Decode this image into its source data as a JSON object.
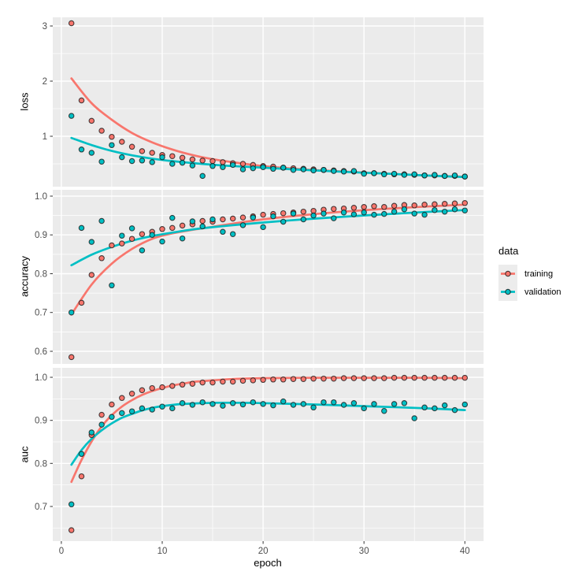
{
  "figure": {
    "background": "#FFFFFF",
    "panel_background": "#EBEBEB",
    "grid_color": "#FFFFFF",
    "tick_mark_color": "#333333",
    "tick_label_color": "#4D4D4D",
    "axis_title_color": "#000000",
    "point_outline_color": "#1A1A1A"
  },
  "legend": {
    "title": "data",
    "entries": [
      {
        "label": "training",
        "color": "#F8766D"
      },
      {
        "label": "validation",
        "color": "#00BFC4"
      }
    ]
  },
  "x_axis": {
    "label": "epoch",
    "ticks": [
      0,
      10,
      20,
      30,
      40
    ],
    "tick_labels": [
      "0",
      "10",
      "20",
      "30",
      "40"
    ],
    "minor_ticks": [
      5,
      15,
      25,
      35
    ],
    "xlim": [
      -0.85,
      41.85
    ]
  },
  "chart_data": [
    {
      "type": "scatter",
      "ylabel": "loss",
      "ylim": [
        0.086,
        3.157
      ],
      "yticks": [
        1,
        2,
        3
      ],
      "ytick_labels": [
        "1",
        "2",
        "3"
      ],
      "yticks_minor": [
        0.5,
        1.5,
        2.5
      ],
      "x": [
        1,
        2,
        3,
        4,
        5,
        6,
        7,
        8,
        9,
        10,
        11,
        12,
        13,
        14,
        15,
        16,
        17,
        18,
        19,
        20,
        21,
        22,
        23,
        24,
        25,
        26,
        27,
        28,
        29,
        30,
        31,
        32,
        33,
        34,
        35,
        36,
        37,
        38,
        39,
        40
      ],
      "series": [
        {
          "name": "training",
          "color": "#F8766D",
          "values": [
            3.05,
            1.65,
            1.28,
            1.1,
            0.99,
            0.9,
            0.81,
            0.73,
            0.7,
            0.66,
            0.64,
            0.61,
            0.58,
            0.56,
            0.55,
            0.53,
            0.51,
            0.5,
            0.48,
            0.46,
            0.45,
            0.43,
            0.42,
            0.41,
            0.4,
            0.39,
            0.38,
            0.37,
            0.36,
            0.33,
            0.33,
            0.32,
            0.31,
            0.31,
            0.3,
            0.29,
            0.29,
            0.28,
            0.28,
            0.27
          ],
          "smooth": [
            [
              1,
              2.05
            ],
            [
              3,
              1.6
            ],
            [
              5,
              1.3
            ],
            [
              7,
              1.06
            ],
            [
              9,
              0.89
            ],
            [
              11,
              0.76
            ],
            [
              13,
              0.66
            ],
            [
              15,
              0.585
            ],
            [
              17,
              0.53
            ],
            [
              20,
              0.46
            ],
            [
              24,
              0.4
            ],
            [
              28,
              0.36
            ],
            [
              32,
              0.325
            ],
            [
              36,
              0.29
            ],
            [
              40,
              0.265
            ]
          ]
        },
        {
          "name": "validation",
          "color": "#00BFC4",
          "values": [
            1.37,
            0.76,
            0.7,
            0.54,
            0.84,
            0.62,
            0.55,
            0.56,
            0.53,
            0.62,
            0.5,
            0.52,
            0.47,
            0.28,
            0.46,
            0.44,
            0.48,
            0.4,
            0.42,
            0.44,
            0.41,
            0.43,
            0.39,
            0.4,
            0.38,
            0.39,
            0.37,
            0.36,
            0.37,
            0.32,
            0.33,
            0.31,
            0.32,
            0.3,
            0.31,
            0.29,
            0.3,
            0.28,
            0.29,
            0.27
          ],
          "smooth": [
            [
              1,
              0.97
            ],
            [
              3,
              0.84
            ],
            [
              5,
              0.735
            ],
            [
              7,
              0.655
            ],
            [
              9,
              0.595
            ],
            [
              11,
              0.55
            ],
            [
              13,
              0.515
            ],
            [
              15,
              0.485
            ],
            [
              17,
              0.46
            ],
            [
              20,
              0.43
            ],
            [
              24,
              0.39
            ],
            [
              28,
              0.355
            ],
            [
              32,
              0.325
            ],
            [
              36,
              0.29
            ],
            [
              40,
              0.26
            ]
          ]
        }
      ]
    },
    {
      "type": "scatter",
      "ylabel": "accuracy",
      "ylim": [
        0.5675,
        1.0162
      ],
      "yticks": [
        0.6,
        0.7,
        0.8,
        0.9,
        1.0
      ],
      "ytick_labels": [
        "0.6",
        "0.7",
        "0.8",
        "0.9",
        "1.0"
      ],
      "yticks_minor": [
        0.65,
        0.75,
        0.85,
        0.95
      ],
      "x": [
        1,
        2,
        3,
        4,
        5,
        6,
        7,
        8,
        9,
        10,
        11,
        12,
        13,
        14,
        15,
        16,
        17,
        18,
        19,
        20,
        21,
        22,
        23,
        24,
        25,
        26,
        27,
        28,
        29,
        30,
        31,
        32,
        33,
        34,
        35,
        36,
        37,
        38,
        39,
        40
      ],
      "series": [
        {
          "name": "training",
          "color": "#F8766D",
          "values": [
            0.585,
            0.725,
            0.797,
            0.84,
            0.873,
            0.878,
            0.89,
            0.902,
            0.908,
            0.915,
            0.918,
            0.924,
            0.927,
            0.936,
            0.934,
            0.94,
            0.942,
            0.945,
            0.948,
            0.952,
            0.954,
            0.956,
            0.958,
            0.96,
            0.962,
            0.965,
            0.967,
            0.968,
            0.97,
            0.972,
            0.974,
            0.972,
            0.975,
            0.977,
            0.976,
            0.978,
            0.979,
            0.98,
            0.981,
            0.982
          ],
          "smooth": [
            [
              1,
              0.695
            ],
            [
              3,
              0.772
            ],
            [
              5,
              0.826
            ],
            [
              7,
              0.864
            ],
            [
              9,
              0.89
            ],
            [
              11,
              0.904
            ],
            [
              13,
              0.913
            ],
            [
              15,
              0.921
            ],
            [
              17,
              0.929
            ],
            [
              20,
              0.94
            ],
            [
              24,
              0.951
            ],
            [
              28,
              0.96
            ],
            [
              32,
              0.967
            ],
            [
              36,
              0.973
            ],
            [
              40,
              0.978
            ]
          ]
        },
        {
          "name": "validation",
          "color": "#00BFC4",
          "values": [
            0.7,
            0.918,
            0.882,
            0.936,
            0.77,
            0.898,
            0.917,
            0.86,
            0.9,
            0.883,
            0.944,
            0.891,
            0.935,
            0.922,
            0.94,
            0.908,
            0.902,
            0.925,
            0.945,
            0.92,
            0.948,
            0.934,
            0.955,
            0.94,
            0.95,
            0.955,
            0.943,
            0.958,
            0.953,
            0.958,
            0.952,
            0.954,
            0.96,
            0.966,
            0.955,
            0.952,
            0.964,
            0.96,
            0.966,
            0.963
          ],
          "smooth": [
            [
              1,
              0.822
            ],
            [
              3,
              0.849
            ],
            [
              5,
              0.869
            ],
            [
              7,
              0.885
            ],
            [
              9,
              0.897
            ],
            [
              11,
              0.906
            ],
            [
              13,
              0.914
            ],
            [
              15,
              0.92
            ],
            [
              17,
              0.925
            ],
            [
              20,
              0.932
            ],
            [
              24,
              0.94
            ],
            [
              28,
              0.947
            ],
            [
              32,
              0.953
            ],
            [
              36,
              0.959
            ],
            [
              40,
              0.964
            ]
          ]
        }
      ]
    },
    {
      "type": "scatter",
      "ylabel": "auc",
      "ylim": [
        0.6195,
        1.022
      ],
      "yticks": [
        0.7,
        0.8,
        0.9,
        1.0
      ],
      "ytick_labels": [
        "0.7",
        "0.8",
        "0.9",
        "1.0"
      ],
      "yticks_minor": [
        0.65,
        0.75,
        0.85,
        0.95
      ],
      "x": [
        1,
        2,
        3,
        4,
        5,
        6,
        7,
        8,
        9,
        10,
        11,
        12,
        13,
        14,
        15,
        16,
        17,
        18,
        19,
        20,
        21,
        22,
        23,
        24,
        25,
        26,
        27,
        28,
        29,
        30,
        31,
        32,
        33,
        34,
        35,
        36,
        37,
        38,
        39,
        40
      ],
      "series": [
        {
          "name": "training",
          "color": "#F8766D",
          "values": [
            0.645,
            0.77,
            0.866,
            0.913,
            0.937,
            0.952,
            0.962,
            0.97,
            0.975,
            0.977,
            0.98,
            0.983,
            0.985,
            0.988,
            0.988,
            0.99,
            0.99,
            0.992,
            0.993,
            0.994,
            0.995,
            0.995,
            0.996,
            0.996,
            0.997,
            0.997,
            0.997,
            0.998,
            0.998,
            0.998,
            0.998,
            0.998,
            0.999,
            0.999,
            0.999,
            0.999,
            0.999,
            0.999,
            0.999,
            0.999
          ],
          "smooth": [
            [
              1,
              0.757
            ],
            [
              2,
              0.808
            ],
            [
              3,
              0.851
            ],
            [
              4,
              0.886
            ],
            [
              5,
              0.912
            ],
            [
              6,
              0.932
            ],
            [
              7,
              0.947
            ],
            [
              8,
              0.959
            ],
            [
              9,
              0.968
            ],
            [
              10,
              0.975
            ],
            [
              11,
              0.981
            ],
            [
              12,
              0.985
            ],
            [
              13,
              0.989
            ],
            [
              14,
              0.991
            ],
            [
              15,
              0.993
            ],
            [
              17,
              0.996
            ],
            [
              20,
              0.998
            ],
            [
              25,
              0.999
            ],
            [
              30,
              0.999
            ],
            [
              35,
              0.999
            ],
            [
              40,
              0.998
            ]
          ]
        },
        {
          "name": "validation",
          "color": "#00BFC4",
          "values": [
            0.705,
            0.822,
            0.872,
            0.89,
            0.908,
            0.917,
            0.921,
            0.928,
            0.925,
            0.932,
            0.928,
            0.94,
            0.936,
            0.942,
            0.938,
            0.934,
            0.94,
            0.937,
            0.942,
            0.938,
            0.935,
            0.944,
            0.936,
            0.938,
            0.93,
            0.942,
            0.942,
            0.936,
            0.94,
            0.928,
            0.938,
            0.922,
            0.938,
            0.94,
            0.905,
            0.93,
            0.928,
            0.935,
            0.924,
            0.937
          ],
          "smooth": [
            [
              1,
              0.797
            ],
            [
              2,
              0.831
            ],
            [
              3,
              0.857
            ],
            [
              4,
              0.877
            ],
            [
              5,
              0.893
            ],
            [
              6,
              0.906
            ],
            [
              7,
              0.915
            ],
            [
              8,
              0.923
            ],
            [
              9,
              0.929
            ],
            [
              10,
              0.933
            ],
            [
              12,
              0.938
            ],
            [
              14,
              0.94
            ],
            [
              16,
              0.941
            ],
            [
              20,
              0.94
            ],
            [
              25,
              0.937
            ],
            [
              30,
              0.933
            ],
            [
              35,
              0.929
            ],
            [
              40,
              0.924
            ]
          ]
        }
      ]
    }
  ]
}
